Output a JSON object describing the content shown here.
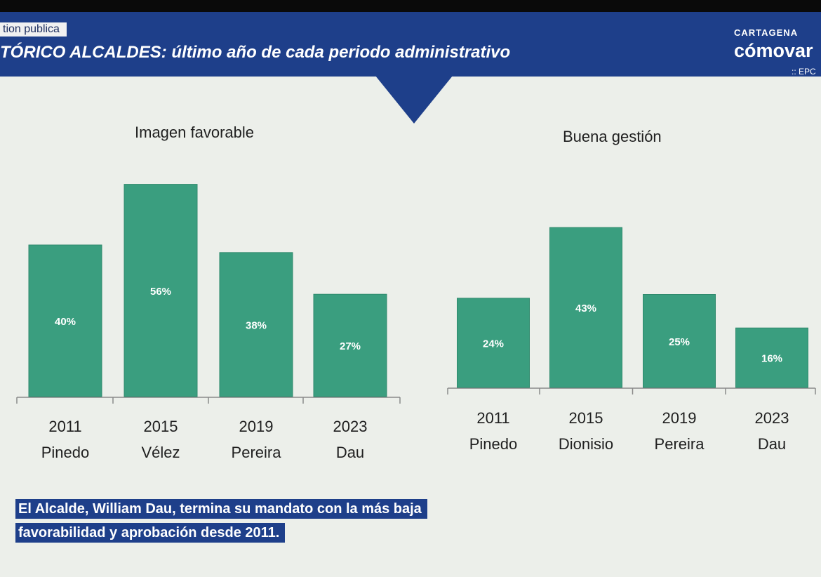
{
  "header": {
    "section_tag": "tion publica",
    "title": "TÓRICO ALCALDES: último año de cada periodo administrativo",
    "brand_top": "CARTAGENA",
    "brand_main": "cómovar",
    "brand_sub": ":: EPC"
  },
  "colors": {
    "bar": "#3a9e7f",
    "bar_edge": "#2f8a6d",
    "header": "#1e3f8a",
    "background": "#ecefea"
  },
  "chart_data": [
    {
      "type": "bar",
      "title": "Imagen favorable",
      "categories": [
        {
          "year": "2011",
          "name": "Pinedo"
        },
        {
          "year": "2015",
          "name": "Vélez"
        },
        {
          "year": "2019",
          "name": "Pereira"
        },
        {
          "year": "2023",
          "name": "Dau"
        }
      ],
      "values": [
        40,
        56,
        38,
        27
      ],
      "value_labels": [
        "40%",
        "56%",
        "38%",
        "27%"
      ],
      "ylim": [
        0,
        60
      ],
      "grid": false,
      "legend": "none"
    },
    {
      "type": "bar",
      "title": "Buena gestión",
      "categories": [
        {
          "year": "2011",
          "name": "Pinedo"
        },
        {
          "year": "2015",
          "name": "Dionisio"
        },
        {
          "year": "2019",
          "name": "Pereira"
        },
        {
          "year": "2023",
          "name": "Dau"
        }
      ],
      "values": [
        24,
        43,
        25,
        16
      ],
      "value_labels": [
        "24%",
        "43%",
        "25%",
        "16%"
      ],
      "ylim": [
        0,
        60
      ],
      "grid": false,
      "legend": "none"
    }
  ],
  "note": {
    "line1": "El Alcalde, William Dau, termina su mandato con la más baja",
    "line2": "favorabilidad y aprobación desde 2011."
  }
}
